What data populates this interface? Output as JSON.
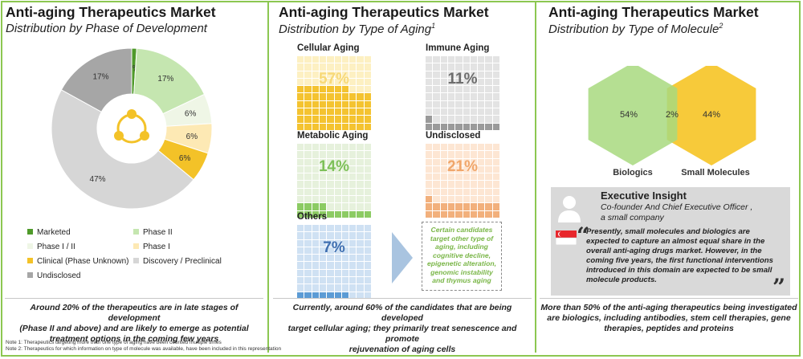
{
  "panels": {
    "phase": {
      "title": "Anti-aging Therapeutics Market",
      "subtitle": "Distribution by Phase of Development",
      "caption_lines": [
        "Around 20% of the therapeutics are in late stages of development",
        "(Phase II and above) and are likely to emerge as potential",
        "treatment options in the coming few years"
      ]
    },
    "aging": {
      "title": "Anti-aging Therapeutics Market",
      "subtitle": "Distribution by Type of Aging",
      "subtitle_sup": "1",
      "note_box": "Certain candidates target other type of aging, including cognitive decline, epigenetic alteration, genomic instability and thymus aging",
      "caption_lines": [
        "Currently, around 60% of the candidates that are being developed",
        "target cellular aging; they primarily treat senescence and promote",
        "rejuvenation of aging cells"
      ]
    },
    "molecule": {
      "title": "Anti-aging Therapeutics Market",
      "subtitle": "Distribution by Type of Molecule",
      "subtitle_sup": "2",
      "caption_lines": [
        "More than 50% of the anti-aging therapeutics being investigated",
        "are biologics, including antibodies, stem cell therapies, gene",
        "therapies, peptides and proteins"
      ]
    }
  },
  "insight": {
    "heading": "Executive Insight",
    "role": "Co-founder And Chief Executive Officer ,",
    "company": "a small company",
    "quote": "Presently, small molecules and biologics are expected to capture an almost equal share in the overall anti-aging drugs market. However, in the coming five years, the first functional interventions introduced in this domain are expected to be small molecule products.",
    "open_mark": "“",
    "close_mark": "”"
  },
  "notes": [
    "Note 1: Therapeutics targeting more than one type of aging have been counted multiple times",
    "Note 2: Therapeutics for which information on type of molecule was available, have been included in this representation"
  ],
  "chart_data": [
    {
      "type": "pie",
      "variant": "donut",
      "title": "Distribution by Phase of Development",
      "slices": [
        {
          "label": "Marketed",
          "value": 1,
          "label_text": "1%",
          "color": "#4f9a2a"
        },
        {
          "label": "Phase II",
          "value": 17,
          "label_text": "17%",
          "color": "#c5e6b0"
        },
        {
          "label": "Phase I / II",
          "value": 6,
          "label_text": "6%",
          "color": "#eff6e6"
        },
        {
          "label": "Phase I",
          "value": 6,
          "label_text": "6%",
          "color": "#fde9b4"
        },
        {
          "label": "Clinical (Phase Unknown)",
          "value": 6,
          "label_text": "6%",
          "color": "#f3c228"
        },
        {
          "label": "Discovery / Preclinical",
          "value": 47,
          "label_text": "47%",
          "color": "#d6d6d6"
        },
        {
          "label": "Undisclosed",
          "value": 17,
          "label_text": "17%",
          "color": "#a6a6a6"
        }
      ],
      "legend_placement": "bottom"
    },
    {
      "type": "waffle",
      "title": "Distribution by Type of Aging",
      "grids": [
        {
          "label": "Cellular Aging",
          "value": 57,
          "label_text": "57%",
          "fill": "#f4c330",
          "empty": "#fdf0c2",
          "text_color": "#f7d978"
        },
        {
          "label": "Immune Aging",
          "value": 11,
          "label_text": "11%",
          "fill": "#9a9a9a",
          "empty": "#e3e3e3",
          "text_color": "#6d6d6d"
        },
        {
          "label": "Metabolic Aging",
          "value": 14,
          "label_text": "14%",
          "fill": "#8ccb63",
          "empty": "#e6f1dc",
          "text_color": "#7dc058"
        },
        {
          "label": "Undisclosed",
          "value": 21,
          "label_text": "21%",
          "fill": "#f2b07c",
          "empty": "#fde6d3",
          "text_color": "#f0a66a"
        },
        {
          "label": "Others",
          "value": 7,
          "label_text": "7%",
          "fill": "#5b9bd5",
          "empty": "#cfe1f3",
          "text_color": "#3f6fb0"
        }
      ]
    },
    {
      "type": "venn",
      "title": "Distribution by Type of Molecule",
      "sets": [
        {
          "label": "Biologics",
          "value": 54,
          "label_text": "54%",
          "color": "#a8d97f"
        },
        {
          "label": "Small Molecules",
          "value": 44,
          "label_text": "44%",
          "color": "#f7c72f"
        }
      ],
      "intersection": {
        "value": 2,
        "label_text": "2%"
      }
    }
  ],
  "colors": {
    "accent": "#8cc751",
    "arrow": "#a9c4e0"
  }
}
